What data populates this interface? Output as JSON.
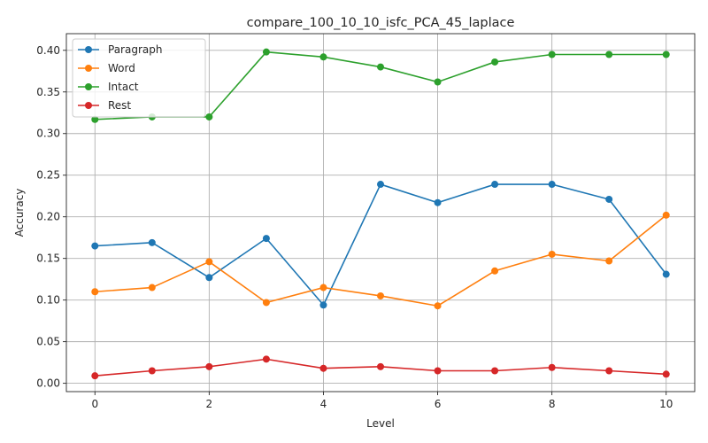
{
  "chart_data": {
    "type": "line",
    "title": "compare_100_10_10_isfc_PCA_45_laplace",
    "xlabel": "Level",
    "ylabel": "Accuracy",
    "xlim": [
      -0.5,
      10.5
    ],
    "ylim": [
      -0.01,
      0.42
    ],
    "xticks": [
      0,
      2,
      4,
      6,
      8,
      10
    ],
    "xtick_labels": [
      "0",
      "2",
      "4",
      "6",
      "8",
      "10"
    ],
    "yticks": [
      0.0,
      0.05,
      0.1,
      0.15,
      0.2,
      0.25,
      0.3,
      0.35,
      0.4
    ],
    "ytick_labels": [
      "0.00",
      "0.05",
      "0.10",
      "0.15",
      "0.20",
      "0.25",
      "0.30",
      "0.35",
      "0.40"
    ],
    "grid": true,
    "legend_position": "top-left",
    "x": [
      0,
      1,
      2,
      3,
      4,
      5,
      6,
      7,
      8,
      9,
      10
    ],
    "series": [
      {
        "name": "Paragraph",
        "color": "#1f77b4",
        "values": [
          0.165,
          0.169,
          0.127,
          0.174,
          0.094,
          0.239,
          0.217,
          0.239,
          0.239,
          0.221,
          0.131
        ]
      },
      {
        "name": "Word",
        "color": "#ff7f0e",
        "values": [
          0.11,
          0.115,
          0.146,
          0.097,
          0.115,
          0.105,
          0.093,
          0.135,
          0.155,
          0.147,
          0.202
        ]
      },
      {
        "name": "Intact",
        "color": "#2ca02c",
        "values": [
          0.317,
          0.32,
          0.32,
          0.398,
          0.392,
          0.38,
          0.362,
          0.386,
          0.395,
          0.395,
          0.395
        ]
      },
      {
        "name": "Rest",
        "color": "#d62728",
        "values": [
          0.009,
          0.015,
          0.02,
          0.029,
          0.018,
          0.02,
          0.015,
          0.015,
          0.019,
          0.015,
          0.011
        ]
      }
    ]
  }
}
